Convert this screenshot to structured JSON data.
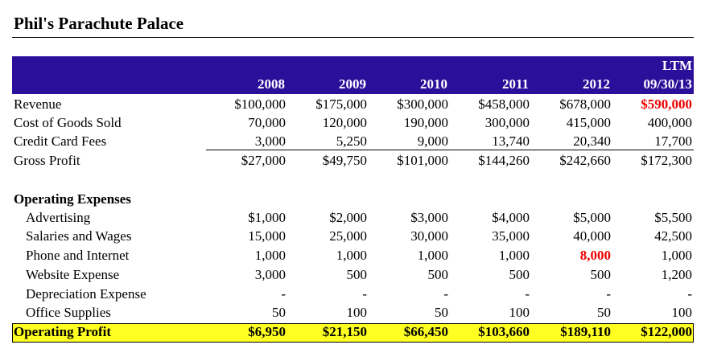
{
  "title": "Phil's Parachute Palace",
  "columns": [
    "2008",
    "2009",
    "2010",
    "2011",
    "2012",
    "09/30/13"
  ],
  "ltm_label": "LTM",
  "rows": {
    "revenue": {
      "label": "Revenue",
      "values": [
        "$100,000",
        "$175,000",
        "$300,000",
        "$458,000",
        "$678,000",
        "$590,000"
      ]
    },
    "cogs": {
      "label": "Cost of Goods Sold",
      "values": [
        "70,000",
        "120,000",
        "190,000",
        "300,000",
        "415,000",
        "400,000"
      ]
    },
    "credit_card_fees": {
      "label": "Credit Card Fees",
      "values": [
        "3,000",
        "5,250",
        "9,000",
        "13,740",
        "20,340",
        "17,700"
      ]
    },
    "gross_profit": {
      "label": "Gross Profit",
      "values": [
        "$27,000",
        "$49,750",
        "$101,000",
        "$144,260",
        "$242,660",
        "$172,300"
      ]
    },
    "operating_expenses_header": {
      "label": "Operating Expenses"
    },
    "advertising": {
      "label": "Advertising",
      "values": [
        "$1,000",
        "$2,000",
        "$3,000",
        "$4,000",
        "$5,000",
        "$5,500"
      ]
    },
    "salaries": {
      "label": "Salaries and Wages",
      "values": [
        "15,000",
        "25,000",
        "30,000",
        "35,000",
        "40,000",
        "42,500"
      ]
    },
    "phone_internet": {
      "label": "Phone and Internet",
      "values": [
        "1,000",
        "1,000",
        "1,000",
        "1,000",
        "8,000",
        "1,000"
      ]
    },
    "website": {
      "label": "Website Expense",
      "values": [
        "3,000",
        "500",
        "500",
        "500",
        "500",
        "1,200"
      ]
    },
    "depreciation": {
      "label": "Depreciation Expense",
      "values": [
        "-",
        "-",
        "-",
        "-",
        "-",
        "-"
      ]
    },
    "office_supplies": {
      "label": "Office Supplies",
      "values": [
        "50",
        "100",
        "50",
        "100",
        "50",
        "100"
      ]
    },
    "operating_profit": {
      "label": "Operating Profit",
      "values": [
        "$6,950",
        "$21,150",
        "$66,450",
        "$103,660",
        "$189,110",
        "$122,000"
      ]
    }
  },
  "colors": {
    "header_band": "#2a0f9a",
    "highlight_red": "#ee0000",
    "operating_profit_band": "#ffff22"
  }
}
